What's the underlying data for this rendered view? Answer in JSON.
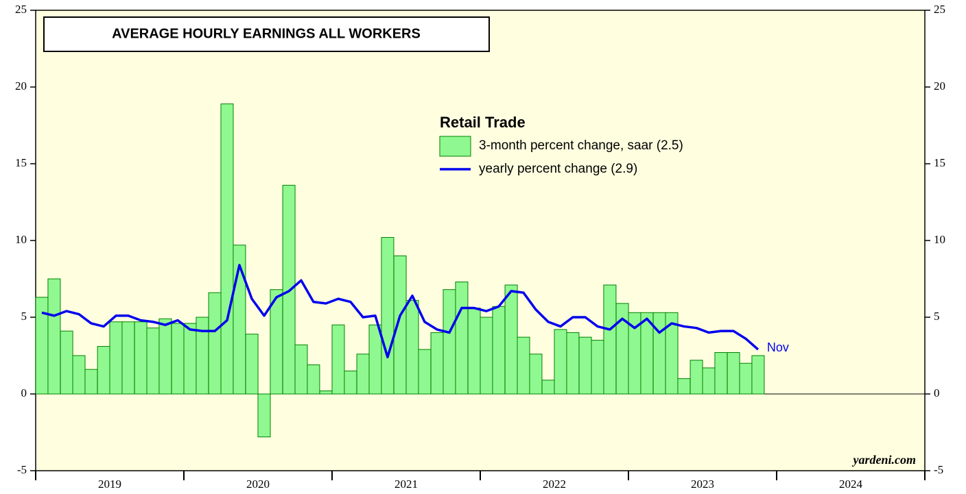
{
  "chart_data": {
    "type": "bar_line",
    "title": "AVERAGE HOURLY EARNINGS ALL WORKERS",
    "legend_title": "Retail Trade",
    "annotation": "Nov",
    "source": "yardeni.com",
    "background": "#ffffe0",
    "x": [
      2019.0,
      2019.083,
      2019.167,
      2019.25,
      2019.333,
      2019.417,
      2019.5,
      2019.583,
      2019.667,
      2019.75,
      2019.833,
      2019.917,
      2020.0,
      2020.083,
      2020.167,
      2020.25,
      2020.333,
      2020.417,
      2020.5,
      2020.583,
      2020.667,
      2020.75,
      2020.833,
      2020.917,
      2021.0,
      2021.083,
      2021.167,
      2021.25,
      2021.333,
      2021.417,
      2021.5,
      2021.583,
      2021.667,
      2021.75,
      2021.833,
      2021.917,
      2022.0,
      2022.083,
      2022.167,
      2022.25,
      2022.333,
      2022.417,
      2022.5,
      2022.583,
      2022.667,
      2022.75,
      2022.833,
      2022.917,
      2023.0,
      2023.083,
      2023.167,
      2023.25,
      2023.333,
      2023.417,
      2023.5,
      2023.583,
      2023.667,
      2023.75,
      2023.833
    ],
    "series": [
      {
        "name": "3-month percent change, saar (2.5)",
        "kind": "bar",
        "color": "#90f890",
        "edge": "#008000",
        "values": [
          6.3,
          7.5,
          4.1,
          2.5,
          1.6,
          3.1,
          4.7,
          4.7,
          4.7,
          4.3,
          4.9,
          4.6,
          4.6,
          5.0,
          6.6,
          18.9,
          9.7,
          3.9,
          -2.8,
          6.8,
          13.6,
          3.2,
          1.9,
          0.2,
          4.5,
          1.5,
          2.6,
          4.5,
          10.2,
          9.0,
          6.1,
          2.9,
          4.0,
          6.8,
          7.3,
          5.6,
          5.0,
          5.7,
          7.1,
          3.7,
          2.6,
          0.9,
          4.2,
          4.0,
          3.7,
          3.5,
          7.1,
          5.9,
          5.3,
          5.3,
          5.3,
          5.3,
          1.0,
          2.2,
          1.7,
          2.7,
          2.7,
          2.0,
          2.5
        ]
      },
      {
        "name": "yearly percent change (2.9)",
        "kind": "line",
        "color": "#0000ee",
        "values": [
          5.3,
          5.1,
          5.4,
          5.2,
          4.6,
          4.4,
          5.1,
          5.1,
          4.8,
          4.7,
          4.5,
          4.8,
          4.2,
          4.1,
          4.1,
          4.8,
          8.4,
          6.2,
          5.1,
          6.3,
          6.7,
          7.4,
          6.0,
          5.9,
          6.2,
          6.0,
          5.0,
          5.1,
          2.4,
          5.1,
          6.4,
          4.7,
          4.2,
          4.0,
          5.6,
          5.6,
          5.4,
          5.7,
          6.7,
          6.6,
          5.5,
          4.7,
          4.4,
          5.0,
          5.0,
          4.4,
          4.2,
          4.9,
          4.3,
          4.9,
          4.0,
          4.6,
          4.4,
          4.3,
          4.0,
          4.1,
          4.1,
          3.6,
          2.9
        ]
      }
    ],
    "xlim": [
      2019,
      2025
    ],
    "xticks": [
      2019,
      2020,
      2021,
      2022,
      2023,
      2024,
      2025
    ],
    "ylim": [
      -5,
      25
    ],
    "yticks": [
      -5,
      0,
      5,
      10,
      15,
      20,
      25
    ]
  }
}
